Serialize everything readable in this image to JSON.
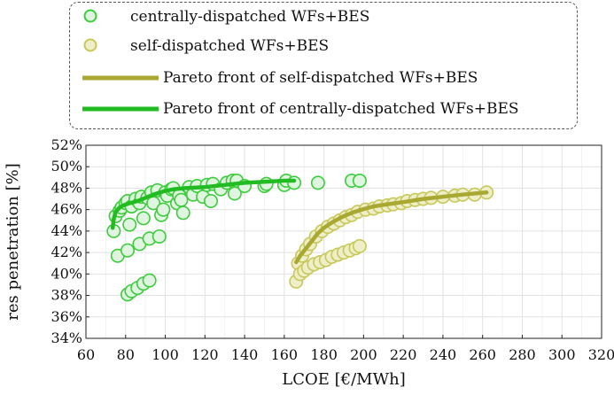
{
  "chart_data": {
    "type": "scatter",
    "xlabel": "LCOE [€/MWh]",
    "ylabel": "res penetration [%]",
    "xlim": [
      60,
      320
    ],
    "ylim": [
      34,
      52
    ],
    "xticks": [
      "60",
      "80",
      "100",
      "120",
      "140",
      "160",
      "180",
      "200",
      "220",
      "240",
      "260",
      "280",
      "300",
      "320"
    ],
    "yticks": [
      "34%",
      "36%",
      "38%",
      "40%",
      "42%",
      "44%",
      "46%",
      "48%",
      "50%",
      "52%"
    ],
    "grid": true,
    "legend_placement": "top",
    "colors": {
      "central_edge": "#3ccc3c",
      "central_fill": "#dff5df",
      "self_edge": "#c8c85a",
      "self_fill": "#eeeec8",
      "self_front": "#a8a832",
      "central_front": "#22bb22"
    },
    "legend": [
      {
        "label": "centrally-dispatched WFs+BES",
        "kind": "marker-central"
      },
      {
        "label": "self-dispatched WFs+BES",
        "kind": "marker-self"
      },
      {
        "label": "Pareto front of self-dispatched WFs+BES",
        "kind": "line-self"
      },
      {
        "label": "Pareto front of centrally-dispatched WFs+BES",
        "kind": "line-central"
      }
    ],
    "series": [
      {
        "name": "centrally-dispatched WFs+BES",
        "points": [
          [
            74,
            44
          ],
          [
            75,
            45.4
          ],
          [
            76,
            41.7
          ],
          [
            77,
            45.9
          ],
          [
            78,
            46.2
          ],
          [
            80,
            46.6
          ],
          [
            81,
            42.2
          ],
          [
            81,
            46.8
          ],
          [
            81,
            38.1
          ],
          [
            82,
            44.6
          ],
          [
            83,
            46.3
          ],
          [
            83,
            38.4
          ],
          [
            85,
            47.0
          ],
          [
            86,
            38.7
          ],
          [
            87,
            46.6
          ],
          [
            87,
            42.8
          ],
          [
            88,
            47.2
          ],
          [
            89,
            39.1
          ],
          [
            89,
            45.2
          ],
          [
            91,
            47.1
          ],
          [
            92,
            39.4
          ],
          [
            92,
            43.3
          ],
          [
            93,
            47.6
          ],
          [
            94,
            46.6
          ],
          [
            96,
            47.8
          ],
          [
            97,
            43.5
          ],
          [
            98,
            45.5
          ],
          [
            99,
            46.0
          ],
          [
            100,
            47.6
          ],
          [
            101,
            47.3
          ],
          [
            103,
            47.9
          ],
          [
            104,
            48.0
          ],
          [
            106,
            46.6
          ],
          [
            107,
            47.3
          ],
          [
            108,
            46.9
          ],
          [
            109,
            45.7
          ],
          [
            112,
            48.1
          ],
          [
            114,
            47.4
          ],
          [
            116,
            48.2
          ],
          [
            119,
            47.2
          ],
          [
            121,
            48.3
          ],
          [
            123,
            46.8
          ],
          [
            124,
            48.4
          ],
          [
            128,
            47.9
          ],
          [
            131,
            48.5
          ],
          [
            134,
            48.7
          ],
          [
            135,
            47.5
          ],
          [
            136,
            48.7
          ],
          [
            140,
            48.2
          ],
          [
            150,
            48.2
          ],
          [
            151,
            48.4
          ],
          [
            160,
            48.3
          ],
          [
            161,
            48.7
          ],
          [
            165,
            48.5
          ],
          [
            177,
            48.5
          ],
          [
            194,
            48.7
          ],
          [
            198,
            48.7
          ]
        ]
      },
      {
        "name": "self-dispatched WFs+BES",
        "points": [
          [
            166,
            39.3
          ],
          [
            167,
            41.0
          ],
          [
            168,
            40.0
          ],
          [
            169,
            41.7
          ],
          [
            170,
            40.3
          ],
          [
            171,
            42.3
          ],
          [
            172,
            40.6
          ],
          [
            173,
            42.8
          ],
          [
            175,
            40.9
          ],
          [
            176,
            43.5
          ],
          [
            178,
            41.1
          ],
          [
            179,
            44.0
          ],
          [
            181,
            41.3
          ],
          [
            182,
            44.4
          ],
          [
            184,
            41.6
          ],
          [
            185,
            44.7
          ],
          [
            187,
            41.8
          ],
          [
            188,
            45.0
          ],
          [
            190,
            42.0
          ],
          [
            191,
            45.3
          ],
          [
            193,
            42.2
          ],
          [
            194,
            45.5
          ],
          [
            196,
            42.4
          ],
          [
            197,
            45.8
          ],
          [
            198,
            42.6
          ],
          [
            201,
            46.0
          ],
          [
            205,
            46.1
          ],
          [
            208,
            46.3
          ],
          [
            212,
            46.4
          ],
          [
            215,
            46.5
          ],
          [
            219,
            46.6
          ],
          [
            222,
            46.8
          ],
          [
            226,
            46.9
          ],
          [
            230,
            47.0
          ],
          [
            234,
            47.1
          ],
          [
            240,
            47.2
          ],
          [
            246,
            47.3
          ],
          [
            250,
            47.4
          ],
          [
            256,
            47.4
          ],
          [
            262,
            47.6
          ]
        ]
      }
    ],
    "fronts": [
      {
        "name": "Pareto front of centrally-dispatched WFs+BES",
        "points": [
          [
            73.5,
            44.3
          ],
          [
            74,
            45.1
          ],
          [
            75,
            45.8
          ],
          [
            77,
            46.2
          ],
          [
            79,
            46.4
          ],
          [
            82,
            46.6
          ],
          [
            86,
            46.8
          ],
          [
            90,
            47.1
          ],
          [
            94,
            47.4
          ],
          [
            99,
            47.7
          ],
          [
            104,
            47.9
          ],
          [
            110,
            48.0
          ],
          [
            120,
            48.1
          ],
          [
            130,
            48.3
          ],
          [
            140,
            48.5
          ],
          [
            150,
            48.6
          ],
          [
            160,
            48.7
          ],
          [
            165,
            48.7
          ]
        ]
      },
      {
        "name": "Pareto front of self-dispatched WFs+BES",
        "points": [
          [
            166,
            41.1
          ],
          [
            168,
            41.7
          ],
          [
            171,
            42.4
          ],
          [
            174,
            43.1
          ],
          [
            177,
            43.8
          ],
          [
            180,
            44.3
          ],
          [
            184,
            44.8
          ],
          [
            189,
            45.3
          ],
          [
            194,
            45.7
          ],
          [
            199,
            46.0
          ],
          [
            205,
            46.3
          ],
          [
            212,
            46.5
          ],
          [
            220,
            46.7
          ],
          [
            230,
            47.0
          ],
          [
            240,
            47.2
          ],
          [
            250,
            47.4
          ],
          [
            262,
            47.6
          ]
        ]
      }
    ]
  }
}
